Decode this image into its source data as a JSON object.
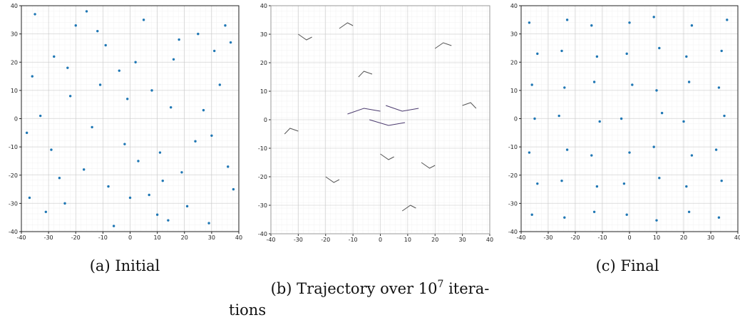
{
  "chart_data": [
    {
      "type": "scatter",
      "color": "#1f77b4",
      "grid": true,
      "caption": "(a) Initial",
      "xlim": [
        -40,
        40
      ],
      "ylim": [
        -40,
        40
      ],
      "xticks": [
        -40,
        -30,
        -20,
        -10,
        0,
        10,
        20,
        30,
        40
      ],
      "yticks": [
        -40,
        -30,
        -20,
        -10,
        0,
        10,
        20,
        30,
        40
      ],
      "x": [
        -35,
        -28,
        -12,
        5,
        18,
        33,
        -38,
        -22,
        -4,
        11,
        27,
        38,
        -31,
        -17,
        0,
        14,
        24,
        -9,
        -26,
        31,
        8,
        -14,
        21,
        -36,
        3,
        -20,
        36,
        -6,
        16,
        29,
        -33,
        -1,
        12,
        -24,
        35,
        -11,
        25,
        -29,
        7,
        19,
        -16,
        2,
        -37,
        30,
        -8,
        15,
        -23,
        37,
        10,
        -2
      ],
      "values": [
        37,
        22,
        31,
        35,
        28,
        12,
        -5,
        8,
        17,
        -12,
        3,
        -25,
        -33,
        -18,
        -28,
        -36,
        -8,
        26,
        -21,
        24,
        10,
        -3,
        -31,
        15,
        -15,
        33,
        -17,
        -38,
        21,
        -37,
        1,
        7,
        -22,
        -30,
        33,
        12,
        30,
        -11,
        -27,
        -19,
        38,
        20,
        -28,
        -6,
        -24,
        4,
        18,
        27,
        -34,
        -9
      ]
    },
    {
      "type": "line",
      "grid": true,
      "caption": {
        "prefix": "(b) Trajectory over 10",
        "superscript": "7",
        "suffix": " itera-",
        "line2": "tions"
      },
      "xlim": [
        -40,
        40
      ],
      "ylim": [
        -40,
        40
      ],
      "xticks": [
        -40,
        -30,
        -20,
        -10,
        0,
        10,
        20,
        30,
        40
      ],
      "yticks": [
        -40,
        -30,
        -20,
        -10,
        0,
        10,
        20,
        30,
        40
      ],
      "series": [
        {
          "color": "#4b3a6e",
          "x": [
            -12,
            -6,
            0
          ],
          "values": [
            2,
            4,
            3
          ]
        },
        {
          "color": "#4b3a6e",
          "x": [
            -4,
            3,
            9
          ],
          "values": [
            0,
            -2,
            -1
          ]
        },
        {
          "color": "#4b3a6e",
          "x": [
            2,
            8,
            14
          ],
          "values": [
            5,
            3,
            4
          ]
        },
        {
          "color": "#555555",
          "x": [
            -30,
            -27,
            -25
          ],
          "values": [
            30,
            28,
            29
          ]
        },
        {
          "color": "#555555",
          "x": [
            20,
            23,
            26
          ],
          "values": [
            25,
            27,
            26
          ]
        },
        {
          "color": "#555555",
          "x": [
            -20,
            -17,
            -15
          ],
          "values": [
            -20,
            -22,
            -21
          ]
        },
        {
          "color": "#555555",
          "x": [
            15,
            18,
            20
          ],
          "values": [
            -15,
            -17,
            -16
          ]
        },
        {
          "color": "#555555",
          "x": [
            -35,
            -33,
            -30
          ],
          "values": [
            -5,
            -3,
            -4
          ]
        },
        {
          "color": "#555555",
          "x": [
            30,
            33,
            35
          ],
          "values": [
            5,
            6,
            4
          ]
        },
        {
          "color": "#555555",
          "x": [
            -8,
            -6,
            -3
          ],
          "values": [
            15,
            17,
            16
          ]
        },
        {
          "color": "#555555",
          "x": [
            0,
            3,
            5
          ],
          "values": [
            -12,
            -14,
            -13
          ]
        },
        {
          "color": "#555555",
          "x": [
            -15,
            -12,
            -10
          ],
          "values": [
            32,
            34,
            33
          ]
        },
        {
          "color": "#555555",
          "x": [
            8,
            11,
            13
          ],
          "values": [
            -32,
            -30,
            -31
          ]
        }
      ]
    },
    {
      "type": "scatter",
      "color": "#1f77b4",
      "grid": true,
      "caption": "(c) Final",
      "xlim": [
        -40,
        40
      ],
      "ylim": [
        -40,
        40
      ],
      "xticks": [
        -40,
        -30,
        -20,
        -10,
        0,
        10,
        20,
        30,
        40
      ],
      "yticks": [
        -40,
        -30,
        -20,
        -10,
        0,
        10,
        20,
        30,
        40
      ],
      "x": [
        -36,
        -24,
        -13,
        -1,
        10,
        22,
        33,
        -34,
        -25,
        -12,
        -2,
        11,
        21,
        34,
        -37,
        -23,
        -14,
        0,
        9,
        23,
        32,
        -35,
        -26,
        -11,
        -3,
        12,
        20,
        35,
        -36,
        -24,
        -13,
        1,
        10,
        22,
        33,
        -34,
        -25,
        -12,
        -1,
        11,
        21,
        34,
        -37,
        -23,
        -14,
        0,
        9,
        23,
        36
      ],
      "values": [
        -34,
        -35,
        -33,
        -34,
        -36,
        -33,
        -35,
        -23,
        -22,
        -24,
        -23,
        -21,
        -24,
        -22,
        -12,
        -11,
        -13,
        -12,
        -10,
        -13,
        -11,
        0,
        1,
        -1,
        0,
        2,
        -1,
        1,
        12,
        11,
        13,
        12,
        10,
        13,
        11,
        23,
        24,
        22,
        23,
        25,
        22,
        24,
        34,
        35,
        33,
        34,
        36,
        33,
        35
      ]
    }
  ]
}
